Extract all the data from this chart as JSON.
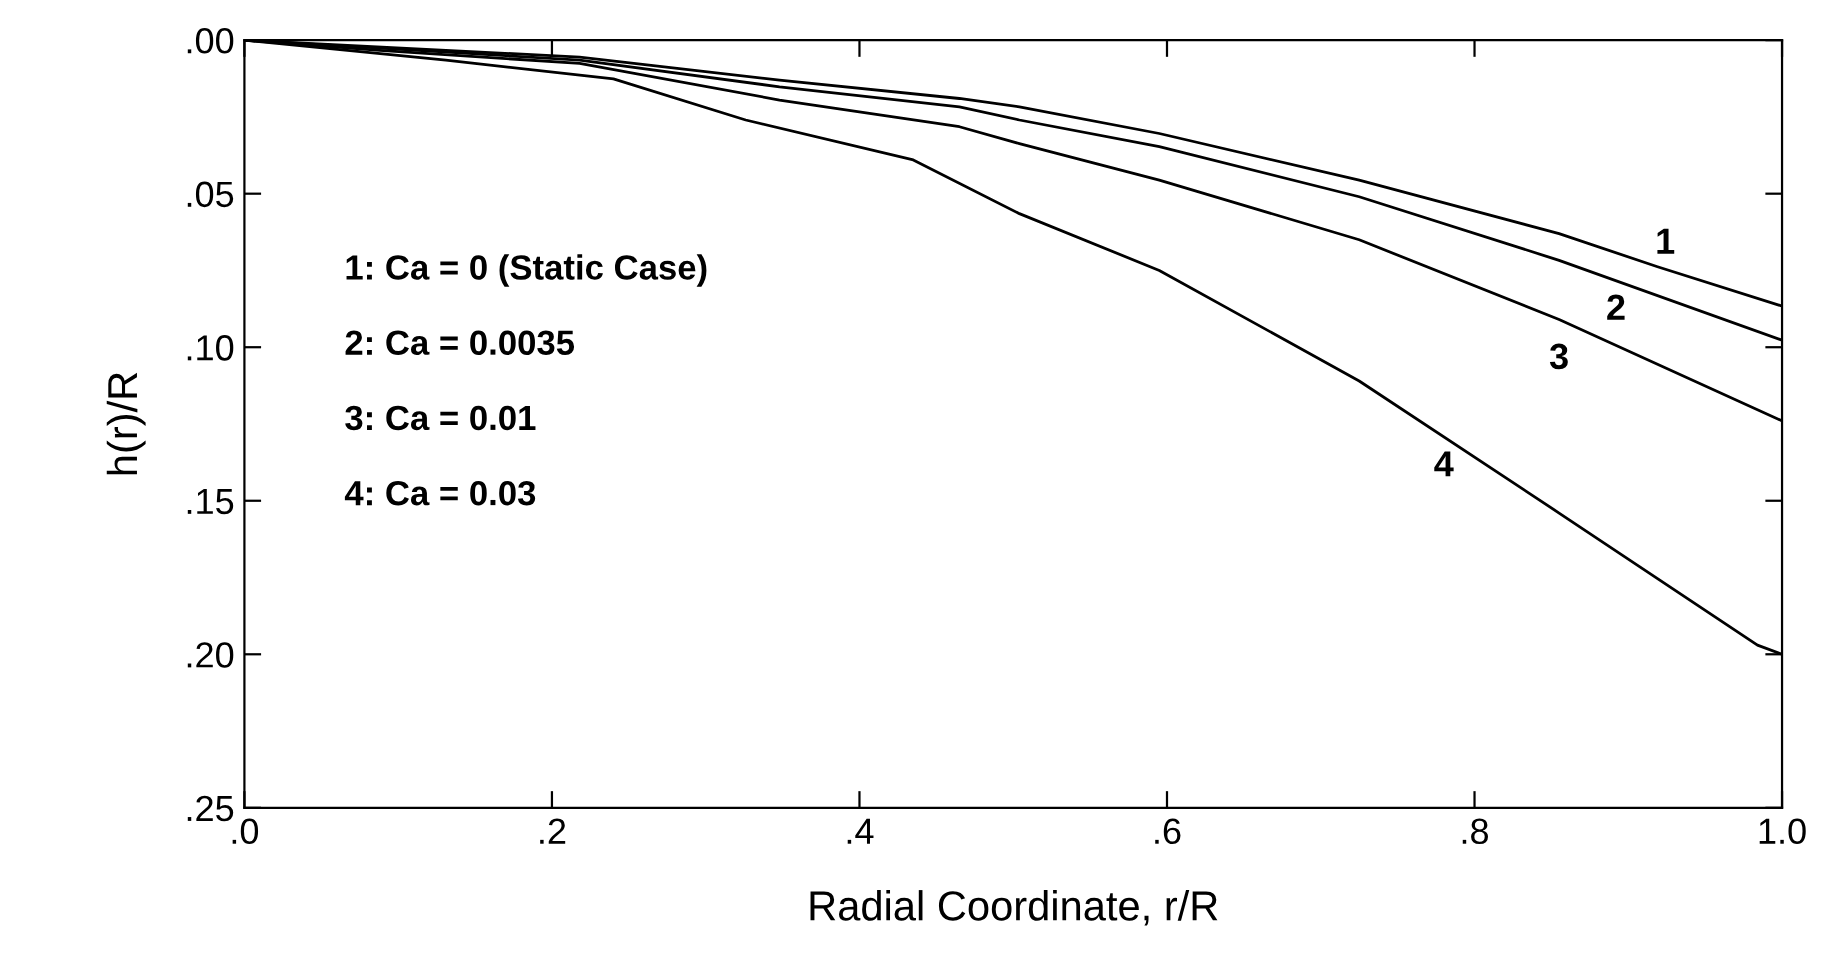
{
  "chart_data": {
    "type": "line",
    "xlabel": "Radial Coordinate, r/R",
    "ylabel": "h(r)/R",
    "xlim": [
      0,
      1
    ],
    "ylim": [
      0.25,
      0
    ],
    "xticks": [
      {
        "value": 0,
        "label": ".0"
      },
      {
        "value": 0.2,
        "label": ".2"
      },
      {
        "value": 0.4,
        "label": ".4"
      },
      {
        "value": 0.6,
        "label": ".6"
      },
      {
        "value": 0.8,
        "label": ".8"
      },
      {
        "value": 1,
        "label": "1.0"
      }
    ],
    "yticks": [
      {
        "value": 0,
        "label": ".00"
      },
      {
        "value": 0.05,
        "label": ".05"
      },
      {
        "value": 0.1,
        "label": ".10"
      },
      {
        "value": 0.15,
        "label": ".15"
      },
      {
        "value": 0.2,
        "label": ".20"
      },
      {
        "value": 0.25,
        "label": ".25"
      }
    ],
    "grid": false,
    "marker": "none",
    "line_style": "solid",
    "series": [
      {
        "color": "#000000",
        "x": [
          0,
          0.218,
          0.348,
          0.465,
          0.504,
          0.595,
          0.725,
          0.855,
          0.919,
          1.0
        ],
        "values": [
          0,
          0.0055,
          0.013,
          0.019,
          0.0217,
          0.0304,
          0.0456,
          0.063,
          0.0738,
          0.0866
        ]
      },
      {
        "color": "#000000",
        "x": [
          0,
          0.218,
          0.348,
          0.465,
          0.504,
          0.595,
          0.725,
          0.855,
          1.0
        ],
        "values": [
          0,
          0.0065,
          0.0152,
          0.0217,
          0.026,
          0.0347,
          0.051,
          0.0717,
          0.0977
        ]
      },
      {
        "color": "#000000",
        "x": [
          0,
          0.088,
          0.218,
          0.348,
          0.465,
          0.504,
          0.595,
          0.725,
          0.855,
          1.0
        ],
        "values": [
          0,
          0.0033,
          0.0076,
          0.0195,
          0.0282,
          0.0337,
          0.0456,
          0.065,
          0.091,
          0.124
        ]
      },
      {
        "color": "#000000",
        "x": [
          0,
          0.131,
          0.24,
          0.326,
          0.435,
          0.504,
          0.595,
          0.725,
          0.855,
          0.984,
          1.0
        ],
        "values": [
          0,
          0.0065,
          0.0126,
          0.026,
          0.039,
          0.0565,
          0.075,
          0.111,
          0.154,
          0.197,
          0.2
        ]
      }
    ],
    "annotations": [
      "1: Ca = 0 (Static Case)",
      "2: Ca = 0.0035",
      "3: Ca = 0.01",
      "4: Ca = 0.03",
      "1",
      "2",
      "3",
      "4"
    ]
  }
}
